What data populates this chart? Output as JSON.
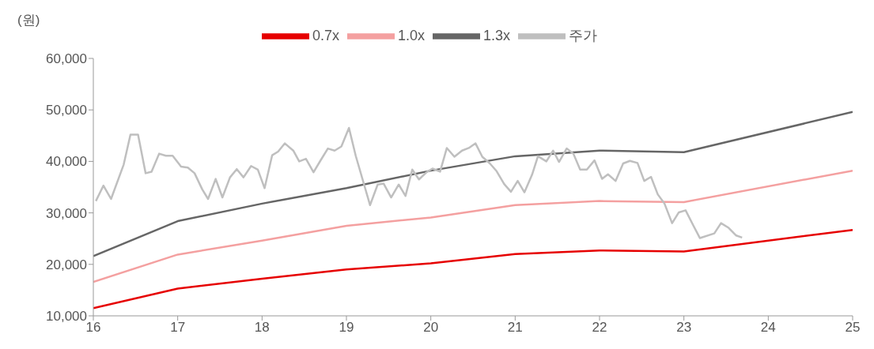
{
  "chart_data": {
    "type": "line",
    "ylabel": "(원)",
    "xlim": [
      16,
      25
    ],
    "xticks": [
      16,
      17,
      18,
      19,
      20,
      21,
      22,
      23,
      24,
      25
    ],
    "ylim": [
      10000,
      60000
    ],
    "yticks": [
      {
        "value": 10000,
        "label": "10,000"
      },
      {
        "value": 20000,
        "label": "20,000"
      },
      {
        "value": 30000,
        "label": "30,000"
      },
      {
        "value": 40000,
        "label": "40,000"
      },
      {
        "value": 50000,
        "label": "50,000"
      },
      {
        "value": 60000,
        "label": "60,000"
      }
    ],
    "grid": false,
    "legend": "top",
    "marker": "none",
    "line_style": "solid",
    "series": [
      {
        "name": "0.7x",
        "color": "#e60000",
        "x": [
          16,
          17,
          18,
          19,
          20,
          21,
          22,
          23,
          25
        ],
        "values": [
          11500,
          15300,
          17200,
          19000,
          20200,
          22000,
          22700,
          22500,
          26700
        ]
      },
      {
        "name": "1.0x",
        "color": "#f4a0a0",
        "x": [
          16,
          17,
          18,
          19,
          20,
          21,
          22,
          23,
          25
        ],
        "values": [
          16600,
          21900,
          24600,
          27500,
          29100,
          31500,
          32300,
          32100,
          38200
        ]
      },
      {
        "name": "1.3x",
        "color": "#666666",
        "x": [
          16,
          17,
          18,
          19,
          20,
          21,
          22,
          23,
          25
        ],
        "values": [
          21600,
          28400,
          31800,
          34800,
          38200,
          41000,
          42100,
          41800,
          49600
        ]
      },
      {
        "name": "주가",
        "color": "#bfbfbf",
        "x": [
          16.03,
          16.12,
          16.21,
          16.36,
          16.44,
          16.53,
          16.62,
          16.69,
          16.78,
          16.86,
          16.94,
          17.04,
          17.12,
          17.2,
          17.29,
          17.36,
          17.45,
          17.53,
          17.62,
          17.7,
          17.78,
          17.87,
          17.95,
          18.03,
          18.12,
          18.19,
          18.27,
          18.37,
          18.44,
          18.52,
          18.61,
          18.69,
          18.78,
          18.86,
          18.94,
          19.03,
          19.11,
          19.28,
          19.37,
          19.44,
          19.53,
          19.62,
          19.7,
          19.78,
          19.86,
          19.95,
          20.02,
          20.11,
          20.19,
          20.28,
          20.37,
          20.45,
          20.53,
          20.61,
          20.7,
          20.78,
          20.87,
          20.95,
          21.03,
          21.11,
          21.2,
          21.27,
          21.37,
          21.45,
          21.52,
          21.61,
          21.69,
          21.77,
          21.85,
          21.94,
          22.03,
          22.1,
          22.19,
          22.28,
          22.36,
          22.45,
          22.53,
          22.61,
          22.69,
          22.77,
          22.86,
          22.94,
          23.02,
          23.11,
          23.19,
          23.36,
          23.44,
          23.53,
          23.62,
          23.69
        ],
        "values": [
          32300,
          35300,
          32700,
          39400,
          45200,
          45200,
          37700,
          38000,
          41500,
          41100,
          41100,
          39000,
          38800,
          37700,
          34600,
          32700,
          36600,
          33000,
          36900,
          38500,
          36900,
          39100,
          38400,
          34800,
          41200,
          41900,
          43500,
          42100,
          40000,
          40500,
          37900,
          40100,
          42500,
          42100,
          42900,
          46500,
          41100,
          31500,
          35500,
          35700,
          33000,
          35500,
          33300,
          38400,
          36500,
          37900,
          38600,
          38000,
          42600,
          40900,
          42100,
          42600,
          43500,
          40900,
          39600,
          38100,
          35600,
          34100,
          36200,
          34000,
          37400,
          41000,
          40000,
          42100,
          39900,
          42500,
          41500,
          38400,
          38400,
          40200,
          36600,
          37500,
          36200,
          39600,
          40100,
          39700,
          36200,
          37000,
          33600,
          31800,
          28000,
          30100,
          30500,
          27600,
          25100,
          26000,
          28000,
          27100,
          25600,
          25200
        ]
      }
    ]
  }
}
